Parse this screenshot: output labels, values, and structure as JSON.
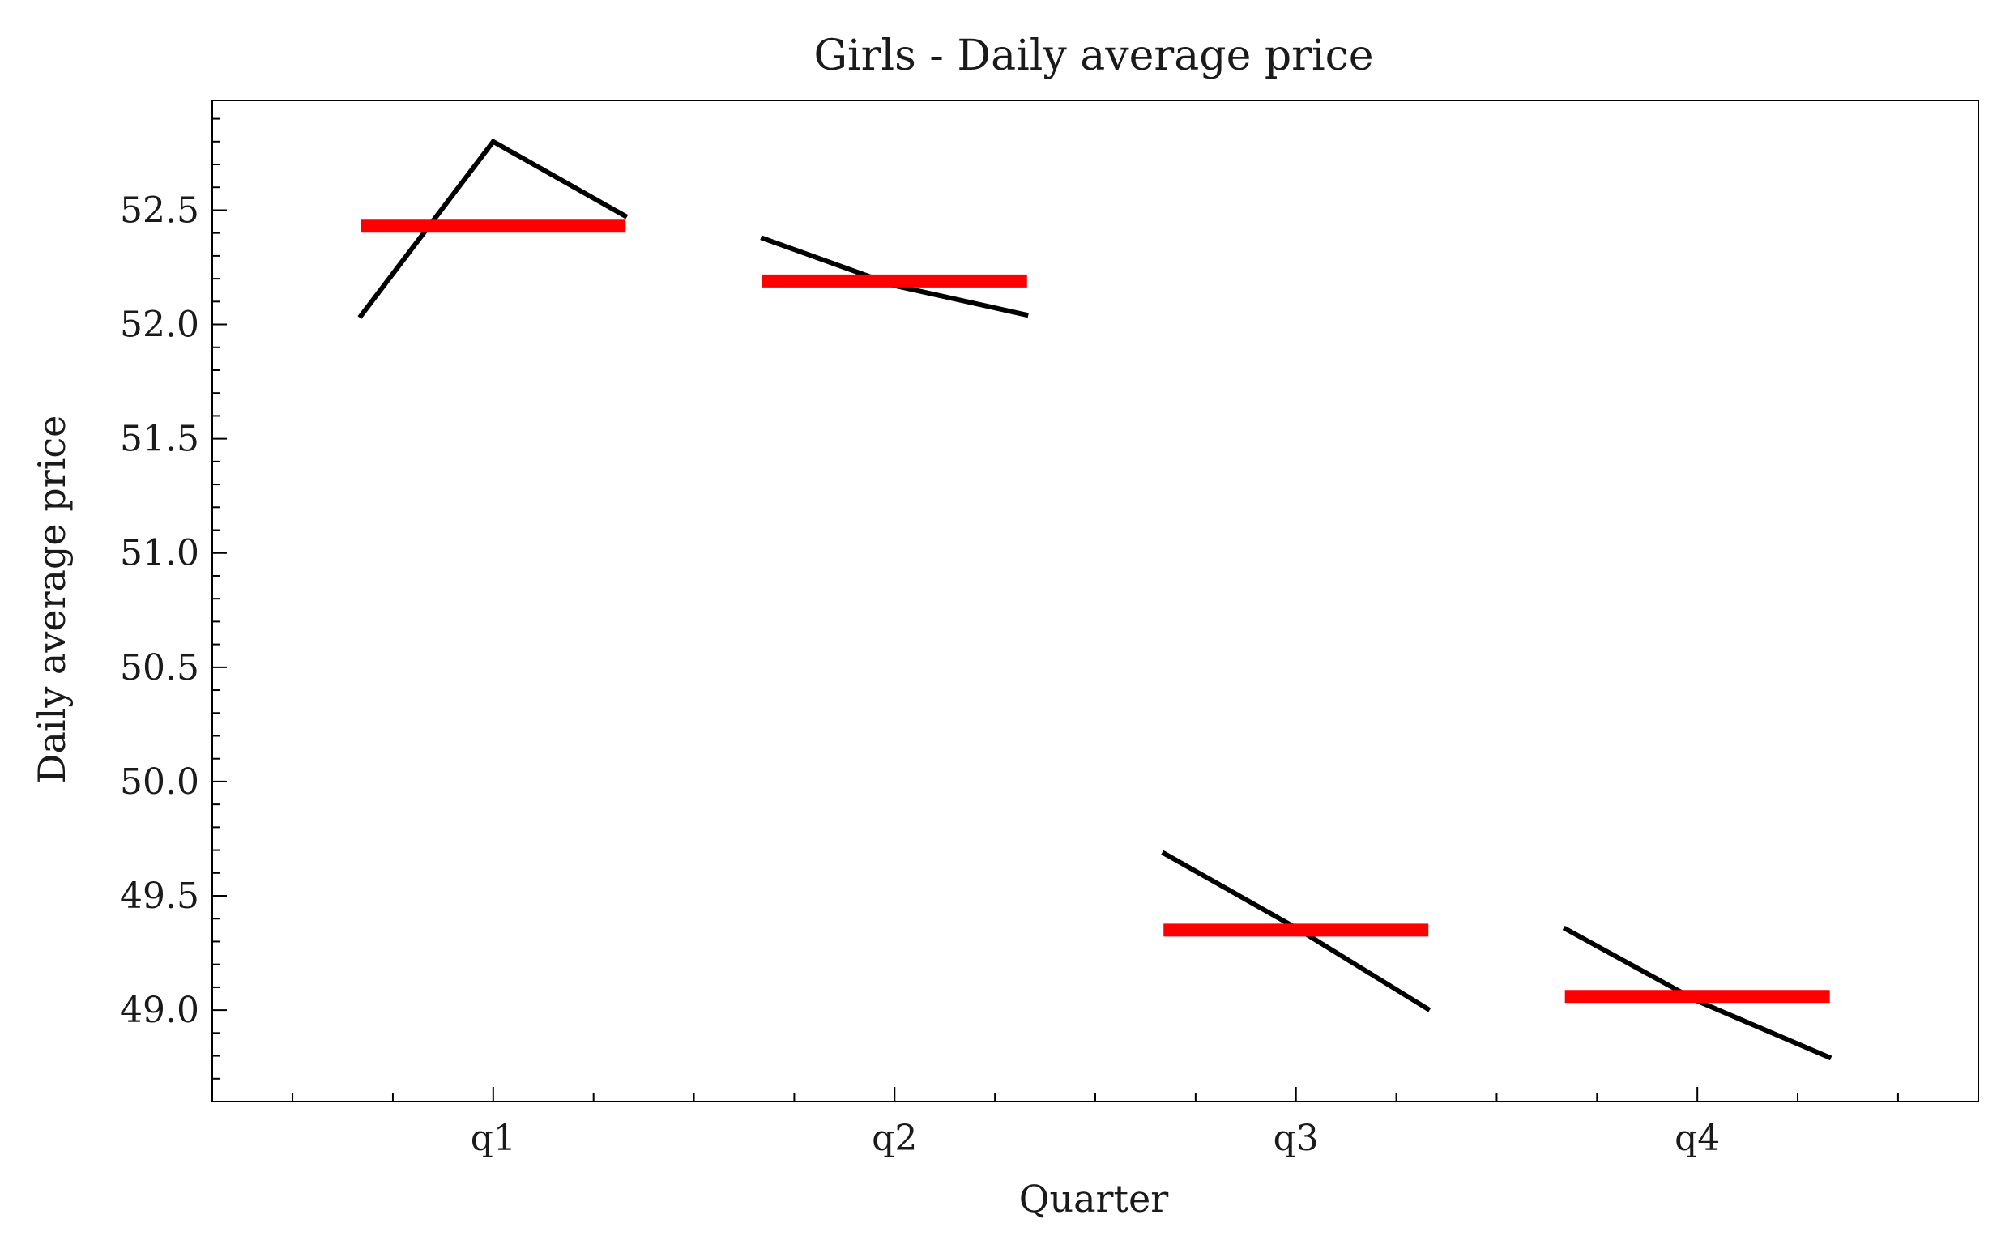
{
  "chart_data": {
    "type": "line",
    "title": "Girls - Daily average price",
    "xlabel": "Quarter",
    "ylabel": "Daily average price",
    "categories": [
      "q1",
      "q2",
      "q3",
      "q4"
    ],
    "xlim": [
      0.3,
      4.7
    ],
    "ylim": [
      48.6,
      52.98
    ],
    "yticks": [
      "49.0",
      "49.5",
      "50.0",
      "50.5",
      "51.0",
      "51.5",
      "52.0",
      "52.5"
    ],
    "grid": false,
    "series": [
      {
        "color": "#000000",
        "points": [
          {
            "category": "q1",
            "values": [
              52.03,
              52.8,
              52.47
            ]
          },
          {
            "category": "q2",
            "values": [
              52.38,
              52.17,
              52.04
            ]
          },
          {
            "category": "q3",
            "values": [
              49.69,
              49.36,
              49.0
            ]
          },
          {
            "category": "q4",
            "values": [
              49.36,
              49.04,
              48.79
            ]
          }
        ]
      },
      {
        "color": "#ff0000",
        "means": [
          {
            "category": "q1",
            "value": 52.43
          },
          {
            "category": "q2",
            "value": 52.19
          },
          {
            "category": "q3",
            "value": 49.35
          },
          {
            "category": "q4",
            "value": 49.06
          }
        ]
      }
    ]
  }
}
